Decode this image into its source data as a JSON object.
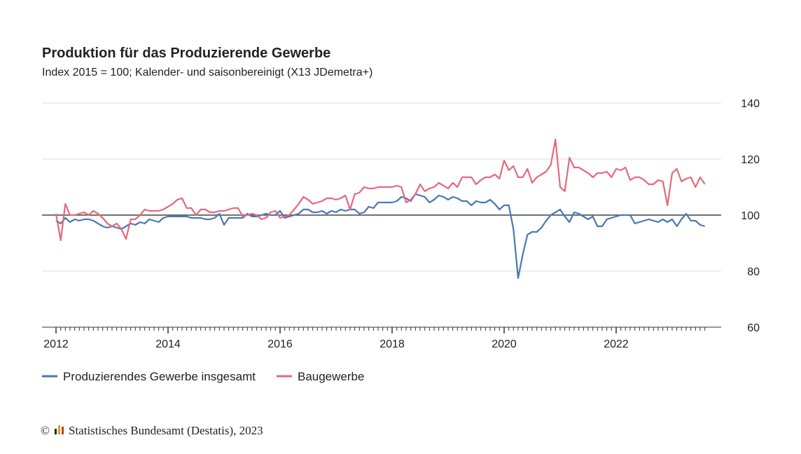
{
  "chart_data": {
    "type": "line",
    "title": "Produktion für das Produzierende Gewerbe",
    "subtitle": "Index 2015 = 100; Kalender- und saisonbereinigt (X13 JDemetra+)",
    "ylim": [
      60,
      140
    ],
    "yticks": [
      60,
      80,
      100,
      120,
      140
    ],
    "reference_line": 100,
    "grid": true,
    "legend": "bottom-left",
    "xticks": [
      "2012",
      "2014",
      "2016",
      "2018",
      "2020",
      "2022"
    ],
    "x": [
      "2012-01",
      "2012-02",
      "2012-03",
      "2012-04",
      "2012-05",
      "2012-06",
      "2012-07",
      "2012-08",
      "2012-09",
      "2012-10",
      "2012-11",
      "2012-12",
      "2013-01",
      "2013-02",
      "2013-03",
      "2013-04",
      "2013-05",
      "2013-06",
      "2013-07",
      "2013-08",
      "2013-09",
      "2013-10",
      "2013-11",
      "2013-12",
      "2014-01",
      "2014-02",
      "2014-03",
      "2014-04",
      "2014-05",
      "2014-06",
      "2014-07",
      "2014-08",
      "2014-09",
      "2014-10",
      "2014-11",
      "2014-12",
      "2015-01",
      "2015-02",
      "2015-03",
      "2015-04",
      "2015-05",
      "2015-06",
      "2015-07",
      "2015-08",
      "2015-09",
      "2015-10",
      "2015-11",
      "2015-12",
      "2016-01",
      "2016-02",
      "2016-03",
      "2016-04",
      "2016-05",
      "2016-06",
      "2016-07",
      "2016-08",
      "2016-09",
      "2016-10",
      "2016-11",
      "2016-12",
      "2017-01",
      "2017-02",
      "2017-03",
      "2017-04",
      "2017-05",
      "2017-06",
      "2017-07",
      "2017-08",
      "2017-09",
      "2017-10",
      "2017-11",
      "2017-12",
      "2018-01",
      "2018-02",
      "2018-03",
      "2018-04",
      "2018-05",
      "2018-06",
      "2018-07",
      "2018-08",
      "2018-09",
      "2018-10",
      "2018-11",
      "2018-12",
      "2019-01",
      "2019-02",
      "2019-03",
      "2019-04",
      "2019-05",
      "2019-06",
      "2019-07",
      "2019-08",
      "2019-09",
      "2019-10",
      "2019-11",
      "2019-12",
      "2020-01",
      "2020-02",
      "2020-03",
      "2020-04",
      "2020-05",
      "2020-06",
      "2020-07",
      "2020-08",
      "2020-09",
      "2020-10",
      "2020-11",
      "2020-12",
      "2021-01",
      "2021-02",
      "2021-03",
      "2021-04",
      "2021-05",
      "2021-06",
      "2021-07",
      "2021-08",
      "2021-09",
      "2021-10",
      "2021-11",
      "2021-12",
      "2022-01",
      "2022-02",
      "2022-03",
      "2022-04",
      "2022-05",
      "2022-06",
      "2022-07",
      "2022-08",
      "2022-09",
      "2022-10",
      "2022-11",
      "2022-12",
      "2023-01",
      "2023-02",
      "2023-03",
      "2023-04",
      "2023-05",
      "2023-06",
      "2023-07",
      "2023-08"
    ],
    "series": [
      {
        "name": "Produzierendes Gewerbe insgesamt",
        "color": "#4a78b5",
        "values": [
          98,
          97,
          99,
          97.5,
          98.5,
          98,
          98.5,
          98.5,
          98,
          97,
          96,
          95.5,
          96,
          95.5,
          95,
          96,
          97,
          96.5,
          97.5,
          97,
          98.5,
          98,
          97.5,
          99,
          99.5,
          99.5,
          99.5,
          99.5,
          99.5,
          99,
          99,
          99,
          98.5,
          98.5,
          99,
          100.5,
          96.5,
          99,
          99,
          99,
          99,
          100.5,
          99.5,
          99.5,
          100,
          100.5,
          100,
          100,
          101.5,
          99,
          99.5,
          100,
          100.5,
          102,
          102,
          101,
          101,
          101.5,
          100.5,
          101.5,
          101,
          102,
          101.5,
          102,
          102,
          100.5,
          101,
          103,
          102.5,
          104.5,
          104.5,
          104.5,
          104.5,
          105,
          106.5,
          106,
          105,
          107.5,
          107,
          106.5,
          104.5,
          105.5,
          107,
          106.5,
          105.5,
          106.5,
          106,
          105,
          105,
          103.5,
          105,
          104.5,
          104.5,
          105.5,
          104,
          102,
          103.5,
          103.5,
          95,
          77.5,
          86,
          93,
          94,
          94,
          95.5,
          98,
          100,
          101,
          102,
          99.5,
          97.5,
          101,
          100.5,
          99.5,
          98.5,
          99.5,
          96,
          96,
          98.5,
          99,
          99.5,
          100,
          100,
          100,
          97,
          97.5,
          98,
          98.5,
          98,
          97.5,
          98.5,
          97.5,
          98.5,
          96,
          98.5,
          100.5,
          98,
          98,
          96.5,
          96
        ]
      },
      {
        "name": "Baugewerbe",
        "color": "#e5697c",
        "values": [
          100.5,
          91,
          104,
          100,
          100,
          100.5,
          101,
          100,
          101.5,
          100.5,
          99,
          97,
          96,
          97,
          95,
          91.5,
          98.5,
          98.5,
          100,
          102,
          101.5,
          101.5,
          101.5,
          102,
          103,
          104,
          105.5,
          106,
          102.5,
          102.5,
          100,
          102,
          102,
          101,
          101,
          101.5,
          101.5,
          102,
          102.5,
          102.5,
          99.5,
          100,
          100.5,
          100,
          98.5,
          99,
          101,
          101.5,
          99,
          99.5,
          100,
          102,
          104,
          106.5,
          105.5,
          104,
          104.5,
          105,
          106,
          106,
          105.5,
          106,
          107,
          102,
          107.5,
          108,
          110,
          109.5,
          109.5,
          110,
          110,
          110,
          110,
          110.5,
          110,
          104.5,
          105.5,
          107.5,
          111,
          108.5,
          109.5,
          110,
          111.5,
          110.5,
          109.5,
          111.5,
          110,
          113.5,
          113.5,
          113.5,
          111,
          112.5,
          113.5,
          113.5,
          114.5,
          113,
          119.5,
          116,
          117.5,
          113.5,
          113.5,
          116.5,
          111.5,
          113.5,
          114.5,
          115.5,
          118,
          127,
          110,
          108.5,
          120.5,
          117,
          117,
          116,
          115,
          113.5,
          115,
          115,
          115.5,
          113.5,
          116.5,
          116,
          117,
          112.5,
          113.5,
          113.5,
          112.5,
          111,
          111,
          112.5,
          112,
          103.5,
          115,
          116.5,
          112,
          113,
          113.5,
          110,
          113.5,
          111
        ]
      }
    ],
    "copyright": "©",
    "footer": "Statistisches Bundesamt (Destatis), 2023"
  }
}
